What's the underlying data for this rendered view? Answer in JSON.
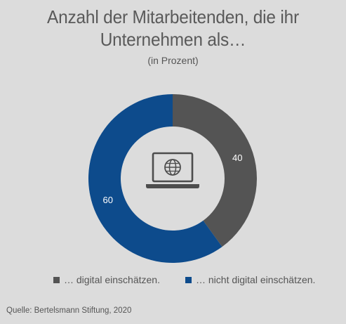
{
  "title_line1": "Anzahl der Mitarbeitenden, die ihr",
  "title_line2": "Unternehmen als…",
  "subtitle": "(in Prozent)",
  "source": "Quelle: Bertelsmann Stiftung, 2020",
  "colors": {
    "background": "#dcdcdc",
    "digital": "#545454",
    "not_digital": "#0d4b8c",
    "icon": "#4d4d4d"
  },
  "center_icon": "laptop-globe-icon",
  "chart_data": {
    "type": "pie",
    "style": "donut",
    "title": "Anzahl der Mitarbeitenden, die ihr Unternehmen als…",
    "subtitle": "(in Prozent)",
    "categories": [
      "… digital einschätzen.",
      "… nicht digital einschätzen."
    ],
    "values": [
      40,
      60
    ],
    "value_labels": [
      "40",
      "60"
    ],
    "colors": [
      "#545454",
      "#0d4b8c"
    ],
    "legend_position": "bottom"
  }
}
